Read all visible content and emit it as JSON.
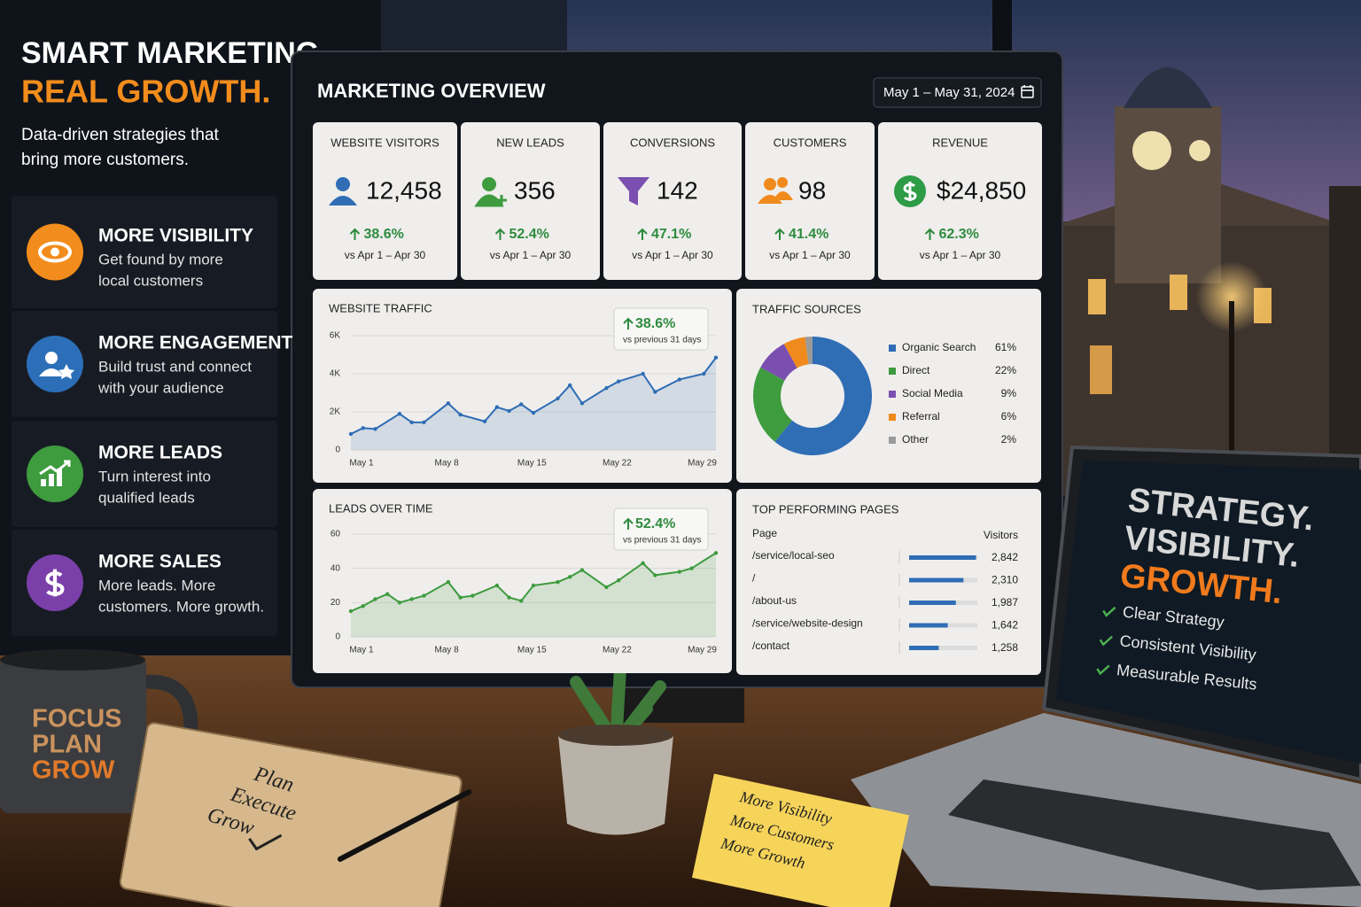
{
  "hero": {
    "title_line1": "SMART MARKETING.",
    "title_line2": "REAL GROWTH.",
    "subtitle": [
      "Data-driven strategies that",
      "bring more customers."
    ]
  },
  "features": [
    {
      "title": "MORE VISIBILITY",
      "text": [
        "Get found by more",
        "local customers"
      ]
    },
    {
      "title": "MORE ENGAGEMENT",
      "text": [
        "Build trust and connect",
        "with your audience"
      ]
    },
    {
      "title": "MORE LEADS",
      "text": [
        "Turn interest into",
        "qualified leads"
      ]
    },
    {
      "title": "MORE SALES",
      "text": [
        "More leads. More",
        "customers. More growth."
      ]
    }
  ],
  "dashboard": {
    "title": "MARKETING OVERVIEW",
    "date_range": "May 1 – May 31, 2024",
    "kpis": [
      {
        "label": "WEBSITE VISITORS",
        "value": "12,458",
        "change": "38.6%",
        "comparison": "vs Apr 1 – Apr 30"
      },
      {
        "label": "NEW LEADS",
        "value": "356",
        "change": "52.4%",
        "comparison": "vs Apr 1 – Apr 30"
      },
      {
        "label": "CONVERSIONS",
        "value": "142",
        "change": "47.1%",
        "comparison": "vs Apr 1 – Apr 30"
      },
      {
        "label": "CUSTOMERS",
        "value": "98",
        "change": "41.4%",
        "comparison": "vs Apr 1 – Apr 30"
      },
      {
        "label": "REVENUE",
        "value": "$24,850",
        "change": "62.3%",
        "comparison": "vs Apr 1 – Apr 30"
      }
    ]
  },
  "chart_data": [
    {
      "type": "line",
      "title": "WEBSITE TRAFFIC",
      "change": "38.6%",
      "change_note": "vs previous 31 days",
      "x": [
        1,
        2,
        3,
        5,
        6,
        7,
        9,
        10,
        12,
        13,
        14,
        15,
        16,
        18,
        19,
        20,
        22,
        23,
        25,
        26,
        28,
        30,
        31
      ],
      "xlim": [
        1,
        31
      ],
      "xticks": [
        {
          "value": 1,
          "label": "May 1"
        },
        {
          "value": 8,
          "label": "May 8"
        },
        {
          "value": 15,
          "label": "May 15"
        },
        {
          "value": 22,
          "label": "May 22"
        },
        {
          "value": 29,
          "label": "May 29"
        }
      ],
      "series": [
        {
          "name": "Website traffic",
          "color": "#2f6db5",
          "values": [
            840,
            1150,
            1100,
            1900,
            1450,
            1450,
            2450,
            1850,
            1500,
            2250,
            2050,
            2400,
            1950,
            2700,
            3400,
            2450,
            3250,
            3600,
            4000,
            3050,
            3700,
            4000,
            4850
          ]
        }
      ],
      "ylim": [
        0,
        6000
      ],
      "yticks": [
        0,
        {
          "value": 2000,
          "label": "2K"
        },
        {
          "value": 4000,
          "label": "4K"
        },
        {
          "value": 6000,
          "label": "6K"
        }
      ],
      "grid": true
    },
    {
      "type": "line",
      "title": "LEADS OVER TIME",
      "change": "52.4%",
      "change_note": "vs previous 31 days",
      "x": [
        1,
        2,
        3,
        4,
        5,
        6,
        7,
        9,
        10,
        11,
        13,
        14,
        15,
        16,
        18,
        19,
        20,
        22,
        23,
        25,
        26,
        28,
        29,
        31
      ],
      "xlim": [
        1,
        31
      ],
      "xticks": [
        {
          "value": 1,
          "label": "May 1"
        },
        {
          "value": 8,
          "label": "May 8"
        },
        {
          "value": 15,
          "label": "May 15"
        },
        {
          "value": 22,
          "label": "May 22"
        },
        {
          "value": 29,
          "label": "May 29"
        }
      ],
      "series": [
        {
          "name": "Leads",
          "color": "#3e9b3e",
          "values": [
            15,
            18,
            22,
            25,
            20,
            22,
            24,
            32,
            23,
            24,
            30,
            23,
            21,
            30,
            32,
            35,
            39,
            29,
            33,
            43,
            36,
            38,
            40,
            49
          ]
        }
      ],
      "ylim": [
        0,
        60
      ],
      "yticks": [
        0,
        20,
        40,
        60
      ],
      "grid": true
    },
    {
      "type": "pie",
      "title": "TRAFFIC SOURCES",
      "donut": true,
      "categories": [
        "Organic Search",
        "Direct",
        "Social Media",
        "Referral",
        "Other"
      ],
      "values": [
        61,
        22,
        9,
        6,
        2
      ],
      "value_labels": [
        "61%",
        "22%",
        "9%",
        "6%",
        "2%"
      ],
      "colors": [
        "#2f6db5",
        "#3e9b3e",
        "#7b4fb0",
        "#f08a1c",
        "#9a9a9a"
      ]
    },
    {
      "type": "hbar",
      "title": "TOP PERFORMING PAGES",
      "category_header": "Page",
      "value_header": "Visitors",
      "categories": [
        "/service/local-seo",
        "/",
        "/about-us",
        "/service/website-design",
        "/contact"
      ],
      "values": [
        2842,
        2310,
        1987,
        1642,
        1258
      ],
      "value_labels": [
        "2,842",
        "2,310",
        "1,987",
        "1,642",
        "1,258"
      ],
      "xlim": [
        0,
        2900
      ],
      "color": "#2f6db5"
    }
  ],
  "laptop": {
    "lines": [
      "STRATEGY.",
      "VISIBILITY.",
      "GROWTH."
    ],
    "items": [
      "Clear Strategy",
      "Consistent Visibility",
      "Measurable Results"
    ]
  },
  "mug": {
    "lines": [
      "FOCUS",
      "PLAN",
      "GROW"
    ]
  },
  "notebook": {
    "lines": [
      "Plan",
      "Execute",
      "Grow"
    ]
  },
  "sticky_note": {
    "lines": [
      "More Visibility",
      "More Customers",
      "More Growth"
    ]
  }
}
